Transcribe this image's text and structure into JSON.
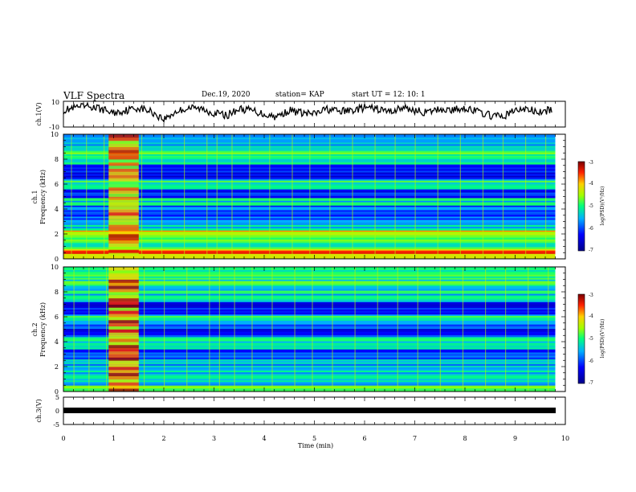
{
  "header": {
    "title": "VLF Spectra",
    "date": "Dec.19, 2020",
    "station": "station= KAP",
    "start": "start  UT  =   12: 10: 1"
  },
  "panels": {
    "ch1_wave": {
      "ylabel": "ch.1(V)",
      "ticks": [
        "10",
        "-10"
      ]
    },
    "ch1_spec": {
      "ylabel_line1": "ch.1",
      "ylabel_line2": "Frequency  (kHz)",
      "ticks": [
        "10",
        "8",
        "6",
        "4",
        "2",
        "0"
      ]
    },
    "ch2_spec": {
      "ylabel_line1": "ch.2",
      "ylabel_line2": "Frequency  (kHz)",
      "ticks": [
        "10",
        "8",
        "6",
        "4",
        "2",
        "0"
      ]
    },
    "ch3_wave": {
      "ylabel": "ch.3(V)",
      "ticks": [
        "5",
        "0",
        "-5"
      ]
    }
  },
  "xaxis": {
    "label": "Time  (min)",
    "ticks": [
      "0",
      "1",
      "2",
      "3",
      "4",
      "5",
      "6",
      "7",
      "8",
      "9",
      "10"
    ]
  },
  "colorbar": {
    "label": "log(PSD)(V²/Hz)",
    "ticks": [
      "-3",
      "-4",
      "-5",
      "-6",
      "-7"
    ]
  },
  "colors": {
    "axis": "#000000",
    "trace": "#000000",
    "cb_high": "#800000",
    "cb_low": "#000080"
  },
  "chart_data": [
    {
      "type": "line",
      "panel": "ch.1 waveform",
      "ylabel": "ch.1(V)",
      "xlabel": "Time  (min)",
      "xlim": [
        0,
        10
      ],
      "ylim": [
        -10,
        10
      ],
      "x": [
        0,
        0.25,
        0.5,
        0.75,
        1,
        1.25,
        1.5,
        1.75,
        2,
        2.25,
        2.5,
        2.75,
        3,
        3.25,
        3.5,
        3.75,
        4,
        4.25,
        4.5,
        4.75,
        5,
        5.25,
        5.5,
        5.75,
        6,
        6.25,
        6.5,
        6.75,
        7,
        7.25,
        7.5,
        7.75,
        8,
        8.25,
        8.5,
        8.75,
        9,
        9.25,
        9.5,
        9.75
      ],
      "y": [
        3,
        5,
        6,
        4,
        1,
        3,
        5,
        2,
        -4,
        2,
        5,
        4,
        1,
        -1,
        4,
        3,
        0,
        -2,
        3,
        1,
        0,
        4,
        2,
        3,
        5,
        4,
        2,
        5,
        3,
        1,
        4,
        3,
        5,
        2,
        -1,
        -2,
        3,
        4,
        1,
        4
      ]
    },
    {
      "type": "heatmap",
      "panel": "ch.1 spectrogram",
      "ylabel": "Frequency  (kHz)",
      "xlim": [
        0,
        10
      ],
      "ylim": [
        0,
        10
      ],
      "colorbar_range": [
        -7,
        -3
      ],
      "bands_khz": [
        {
          "f0": 0.0,
          "f1": 0.8,
          "level": -3.8
        },
        {
          "f0": 0.8,
          "f1": 1.8,
          "level": -5.0
        },
        {
          "f0": 1.8,
          "f1": 2.3,
          "level": -4.2
        },
        {
          "f0": 2.3,
          "f1": 3.0,
          "level": -5.4
        },
        {
          "f0": 3.0,
          "f1": 4.3,
          "level": -6.0
        },
        {
          "f0": 4.3,
          "f1": 4.9,
          "level": -5.3
        },
        {
          "f0": 4.9,
          "f1": 5.6,
          "level": -6.1
        },
        {
          "f0": 5.6,
          "f1": 6.4,
          "level": -5.2
        },
        {
          "f0": 6.4,
          "f1": 7.6,
          "level": -6.2
        },
        {
          "f0": 7.6,
          "f1": 8.8,
          "level": -5.0
        },
        {
          "f0": 8.8,
          "f1": 10.0,
          "level": -5.4
        }
      ],
      "burst": {
        "t0": 0.9,
        "t1": 1.5,
        "level": -4.0
      },
      "spikes_min": [
        0.15,
        0.45,
        0.8,
        1.55,
        1.95,
        2.4,
        2.85,
        3.05,
        3.35,
        3.7,
        4.1,
        4.55,
        4.9,
        5.3,
        5.75,
        6.2,
        6.6,
        7.0,
        7.45,
        7.9,
        8.35,
        8.75,
        9.2,
        9.6
      ]
    },
    {
      "type": "heatmap",
      "panel": "ch.2 spectrogram",
      "ylabel": "Frequency  (kHz)",
      "xlim": [
        0,
        10
      ],
      "ylim": [
        0,
        10
      ],
      "colorbar_range": [
        -7,
        -3
      ],
      "bands_khz": [
        {
          "f0": 0.0,
          "f1": 0.5,
          "level": -4.5
        },
        {
          "f0": 0.5,
          "f1": 1.8,
          "level": -5.3
        },
        {
          "f0": 1.8,
          "f1": 2.6,
          "level": -5.6
        },
        {
          "f0": 2.6,
          "f1": 3.4,
          "level": -6.1
        },
        {
          "f0": 3.4,
          "f1": 4.4,
          "level": -5.3
        },
        {
          "f0": 4.4,
          "f1": 5.4,
          "level": -6.1
        },
        {
          "f0": 5.4,
          "f1": 6.2,
          "level": -5.2
        },
        {
          "f0": 6.2,
          "f1": 7.2,
          "level": -6.2
        },
        {
          "f0": 7.2,
          "f1": 8.6,
          "level": -5.3
        },
        {
          "f0": 8.6,
          "f1": 10.0,
          "level": -5.0
        }
      ],
      "burst": {
        "t0": 0.9,
        "t1": 1.5,
        "level": -3.8
      },
      "spikes_min": [
        0.2,
        0.5,
        0.85,
        1.6,
        2.0,
        2.45,
        2.9,
        3.1,
        3.4,
        3.75,
        4.15,
        4.6,
        4.95,
        5.35,
        5.8,
        6.25,
        6.65,
        7.05,
        7.5,
        7.95,
        8.4,
        8.8,
        9.25,
        9.65
      ]
    },
    {
      "type": "line",
      "panel": "ch.3 waveform",
      "ylabel": "ch.3(V)",
      "xlim": [
        0,
        10
      ],
      "ylim": [
        -5,
        5
      ],
      "x": [
        0,
        9.8
      ],
      "y": [
        0,
        0
      ]
    }
  ]
}
